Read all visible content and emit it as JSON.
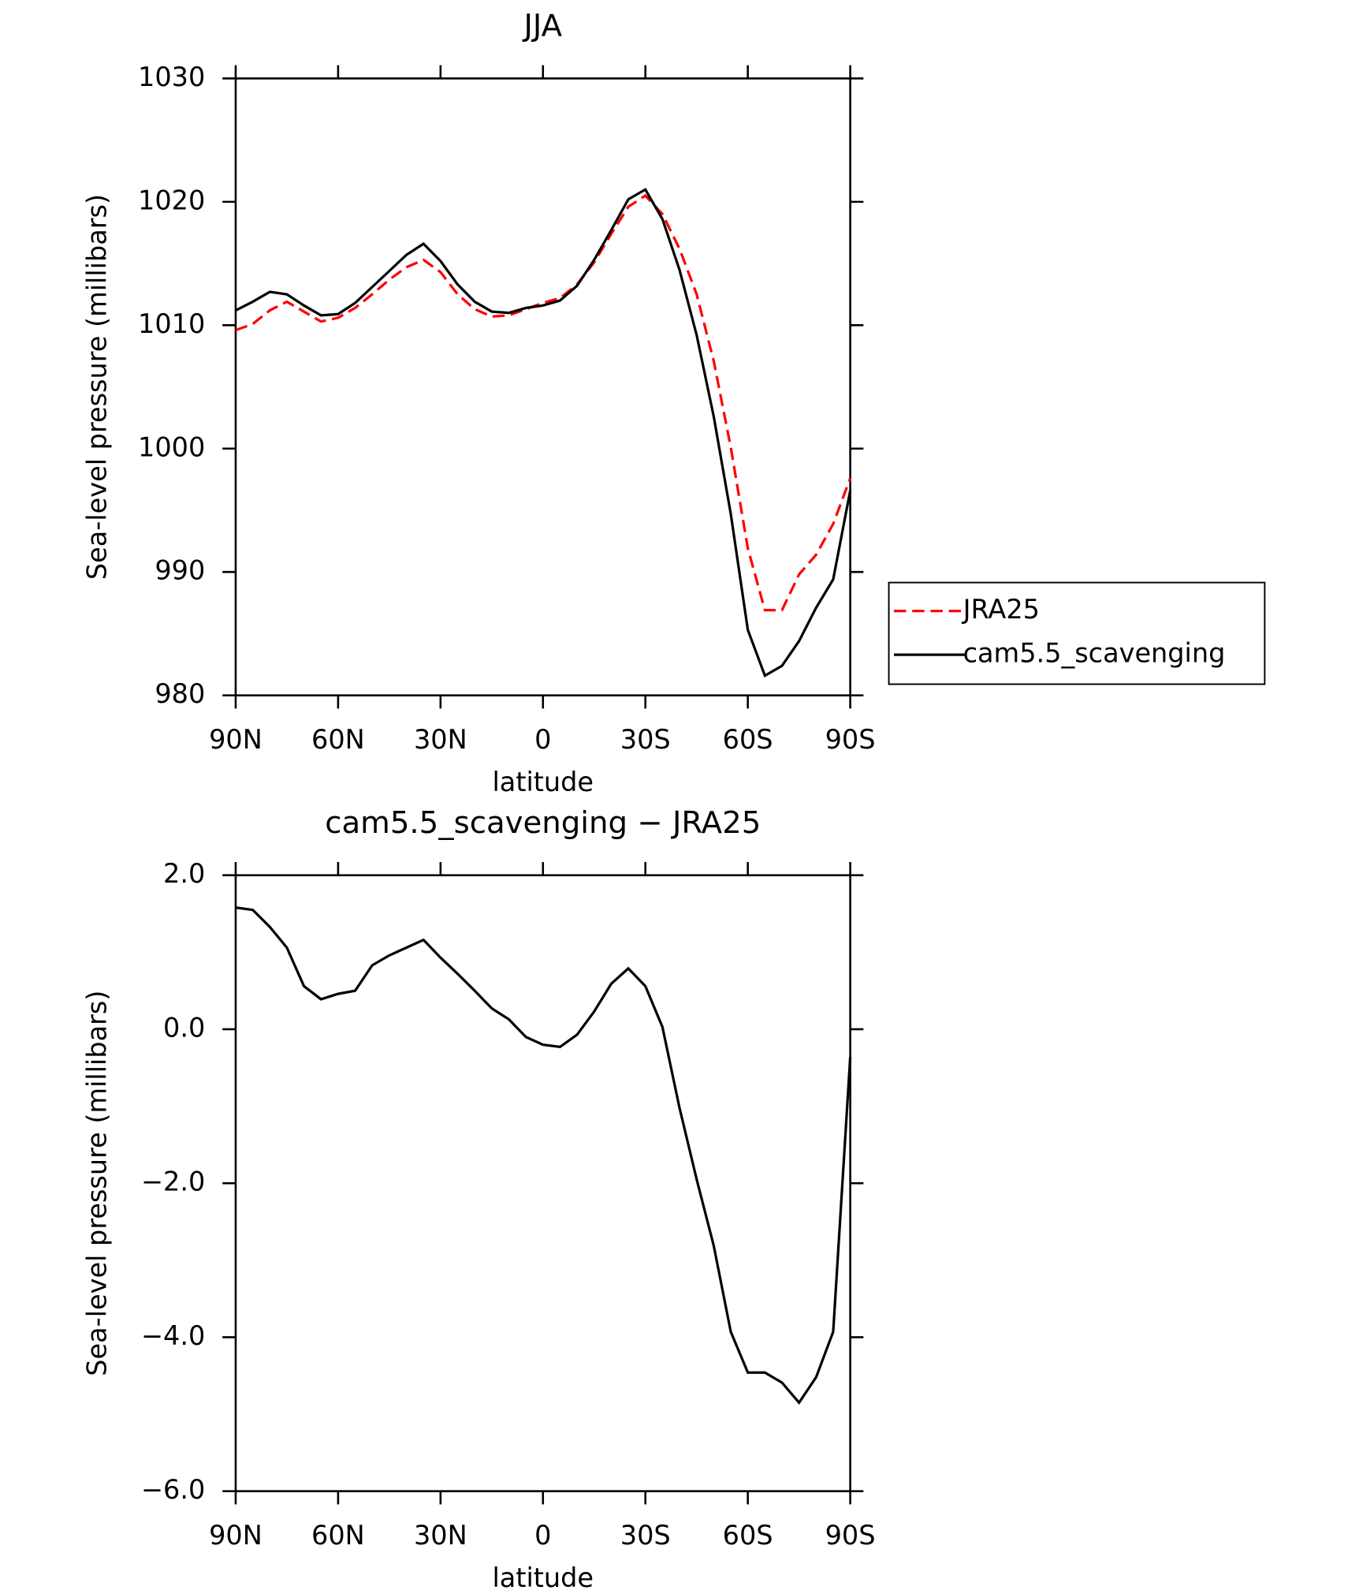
{
  "chart_data": [
    {
      "type": "line",
      "title": "JJA",
      "xlabel": "latitude",
      "ylabel": "Sea-level pressure (millibars)",
      "x": [
        90,
        85,
        80,
        75,
        70,
        65,
        60,
        55,
        50,
        45,
        40,
        35,
        30,
        25,
        20,
        15,
        10,
        5,
        0,
        -5,
        -10,
        -15,
        -20,
        -25,
        -30,
        -35,
        -40,
        -45,
        -50,
        -55,
        -60,
        -65,
        -70,
        -75,
        -80,
        -85,
        -90
      ],
      "series": [
        {
          "name": "JRA25",
          "color": "#ff0000",
          "style": "dashed",
          "values": [
            1009.6,
            1010.1,
            1011.2,
            1011.9,
            1011.1,
            1010.3,
            1010.6,
            1011.4,
            1012.5,
            1013.7,
            1014.7,
            1015.3,
            1014.3,
            1012.5,
            1011.3,
            1010.7,
            1010.8,
            1011.3,
            1011.8,
            1012.2,
            1013.3,
            1015.1,
            1017.4,
            1019.6,
            1020.5,
            1019.0,
            1016.2,
            1012.5,
            1007.1,
            1000.1,
            991.9,
            986.9,
            986.9,
            989.8,
            991.4,
            993.9,
            997.6
          ]
        },
        {
          "name": "cam5.5_scavenging",
          "color": "#000000",
          "style": "solid",
          "values": [
            1011.2,
            1011.9,
            1012.7,
            1012.5,
            1011.6,
            1010.8,
            1010.9,
            1011.8,
            1013.1,
            1014.4,
            1015.7,
            1016.6,
            1015.2,
            1013.3,
            1011.9,
            1011.1,
            1011.0,
            1011.4,
            1011.6,
            1012.0,
            1013.2,
            1015.3,
            1017.7,
            1020.2,
            1021.0,
            1018.6,
            1014.5,
            1009.2,
            1002.6,
            994.7,
            985.3,
            981.6,
            982.4,
            984.4,
            987.1,
            989.4,
            996.6
          ]
        }
      ],
      "xlim": [
        90,
        -90
      ],
      "xticks": [
        {
          "value": 90,
          "label": "90N"
        },
        {
          "value": 60,
          "label": "60N"
        },
        {
          "value": 30,
          "label": "30N"
        },
        0,
        {
          "value": -30,
          "label": "30S"
        },
        {
          "value": -60,
          "label": "60S"
        },
        {
          "value": -90,
          "label": "90S"
        }
      ],
      "ylim": [
        980,
        1030
      ],
      "yticks": [
        980,
        990,
        1000,
        1010,
        1020,
        1030
      ],
      "legend": "right"
    },
    {
      "type": "line",
      "title": "cam5.5_scavenging − JRA25",
      "xlabel": "latitude",
      "ylabel": "Sea-level pressure (millibars)",
      "x": [
        90,
        85,
        80,
        75,
        70,
        65,
        60,
        55,
        50,
        45,
        40,
        35,
        30,
        25,
        20,
        15,
        10,
        5,
        0,
        -5,
        -10,
        -15,
        -20,
        -25,
        -30,
        -35,
        -40,
        -45,
        -50,
        -55,
        -60,
        -65,
        -70,
        -75,
        -80,
        -85,
        -90
      ],
      "series": [
        {
          "color": "#000000",
          "style": "solid",
          "values": [
            1.58,
            1.55,
            1.33,
            1.06,
            0.56,
            0.39,
            0.46,
            0.5,
            0.83,
            0.96,
            1.06,
            1.16,
            0.93,
            0.72,
            0.5,
            0.27,
            0.13,
            -0.1,
            -0.2,
            -0.23,
            -0.07,
            0.23,
            0.59,
            0.79,
            0.56,
            0.03,
            -1.02,
            -1.95,
            -2.81,
            -3.93,
            -4.46,
            -4.46,
            -4.59,
            -4.85,
            -4.52,
            -3.93,
            -0.36
          ]
        }
      ],
      "xlim": [
        90,
        -90
      ],
      "xticks": [
        {
          "value": 90,
          "label": "90N"
        },
        {
          "value": 60,
          "label": "60N"
        },
        {
          "value": 30,
          "label": "30N"
        },
        0,
        {
          "value": -30,
          "label": "30S"
        },
        {
          "value": -60,
          "label": "60S"
        },
        {
          "value": -90,
          "label": "90S"
        }
      ],
      "ylim": [
        -6,
        2
      ],
      "yticks": [
        {
          "value": -6,
          "label": "−6.0"
        },
        {
          "value": -4,
          "label": "−4.0"
        },
        {
          "value": -2,
          "label": "−2.0"
        },
        {
          "value": 0,
          "label": "0.0"
        },
        {
          "value": 2,
          "label": "2.0"
        }
      ]
    }
  ]
}
